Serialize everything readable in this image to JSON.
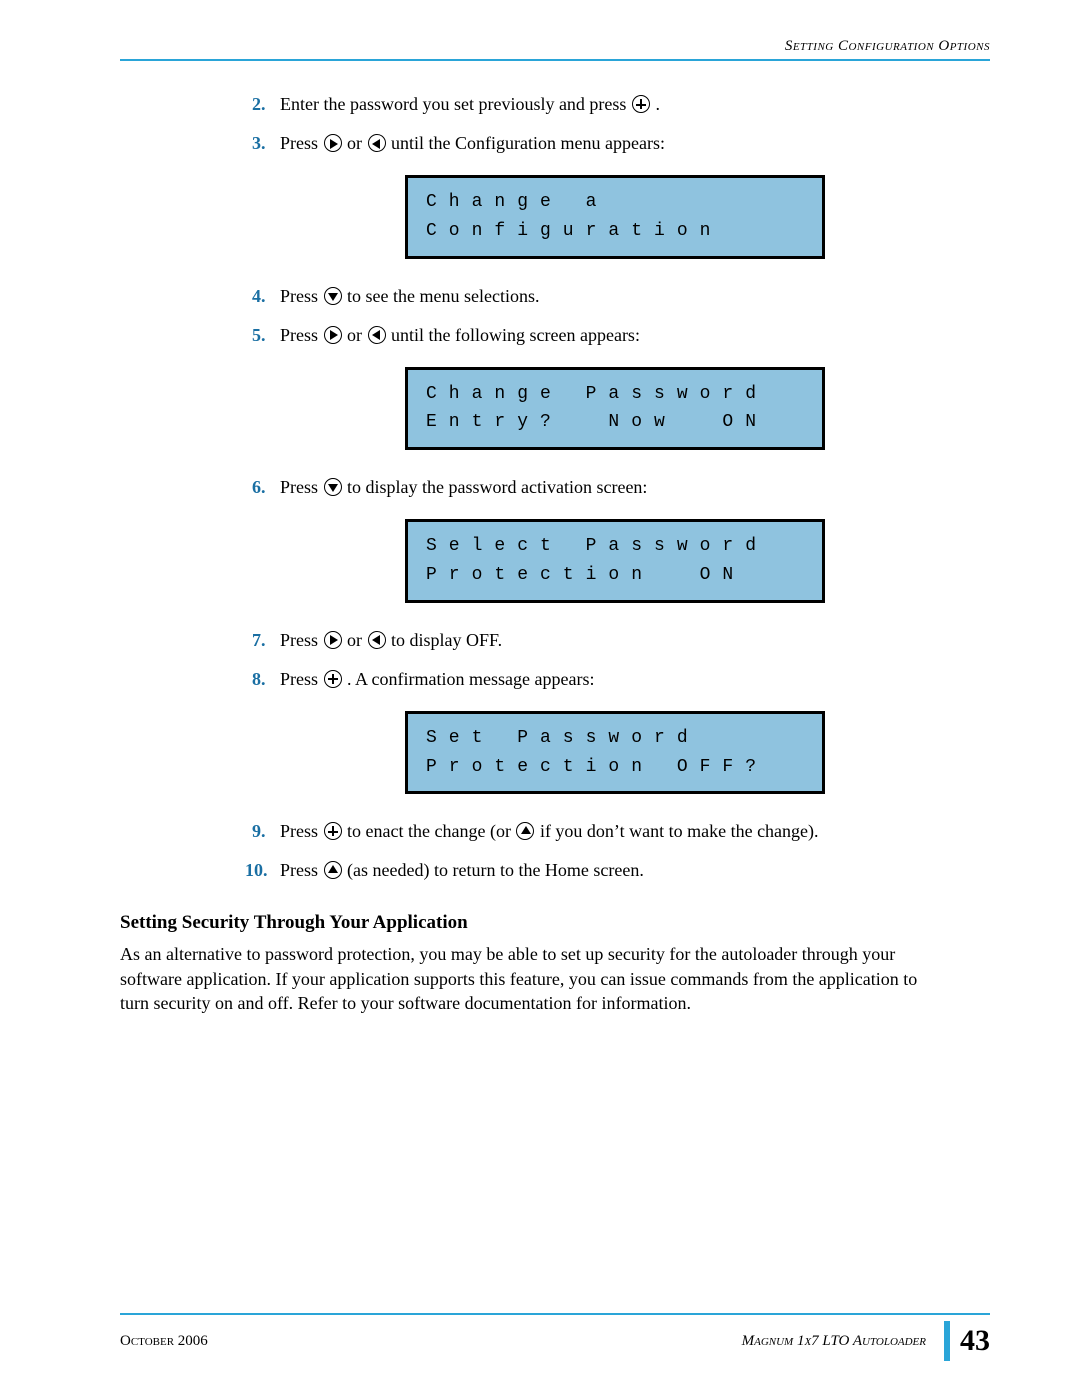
{
  "colors": {
    "accent": "#2aa5d8",
    "lcd_bg": "#8fc3df",
    "lcd_border": "#000000",
    "step_num_color": "#1a6fa3"
  },
  "header": {
    "section_title": "Setting Configuration Options"
  },
  "steps": {
    "s2_num": "2.",
    "s2a": "Enter the password you set previously and press ",
    "s2b": ".",
    "s3_num": "3.",
    "s3a": "Press ",
    "s3b": " or ",
    "s3c": " until the Configuration menu appears:",
    "s4_num": "4.",
    "s4a": "Press ",
    "s4b": " to see the menu selections.",
    "s5_num": "5.",
    "s5a": "Press ",
    "s5b": " or ",
    "s5c": " until the following screen appears:",
    "s6_num": "6.",
    "s6a": "Press ",
    "s6b": " to display the password activation screen:",
    "s7_num": "7.",
    "s7a": "Press ",
    "s7b": " or ",
    "s7c": " to display OFF.",
    "s8_num": "8.",
    "s8a": "Press ",
    "s8b": ". A confirmation message appears:",
    "s9_num": "9.",
    "s9a": "Press ",
    "s9b": " to enact the change (or ",
    "s9c": " if you don’t want to make the change).",
    "s10_num": "10.",
    "s10a": "Press ",
    "s10b": " (as needed) to return to the Home screen."
  },
  "lcd": {
    "box1_line1": "Change a",
    "box1_line2": "Configuration",
    "box2_line1": "Change Password",
    "box2_line2": "Entry?  Now  ON",
    "box3_line1": "Select Password",
    "box3_line2": "Protection  ON",
    "box4_line1": "Set Password",
    "box4_line2": "Protection OFF?"
  },
  "section": {
    "heading": "Setting Security Through Your Application",
    "paragraph": "As an alternative to password protection, you may be able to set up security for the autoloader through your software application. If your application supports this feature, you can issue commands from the application to turn security on and off. Refer to your software documentation for information."
  },
  "footer": {
    "date": "October 2006",
    "product": "Magnum 1x7 LTO Autoloader",
    "page": "43"
  }
}
